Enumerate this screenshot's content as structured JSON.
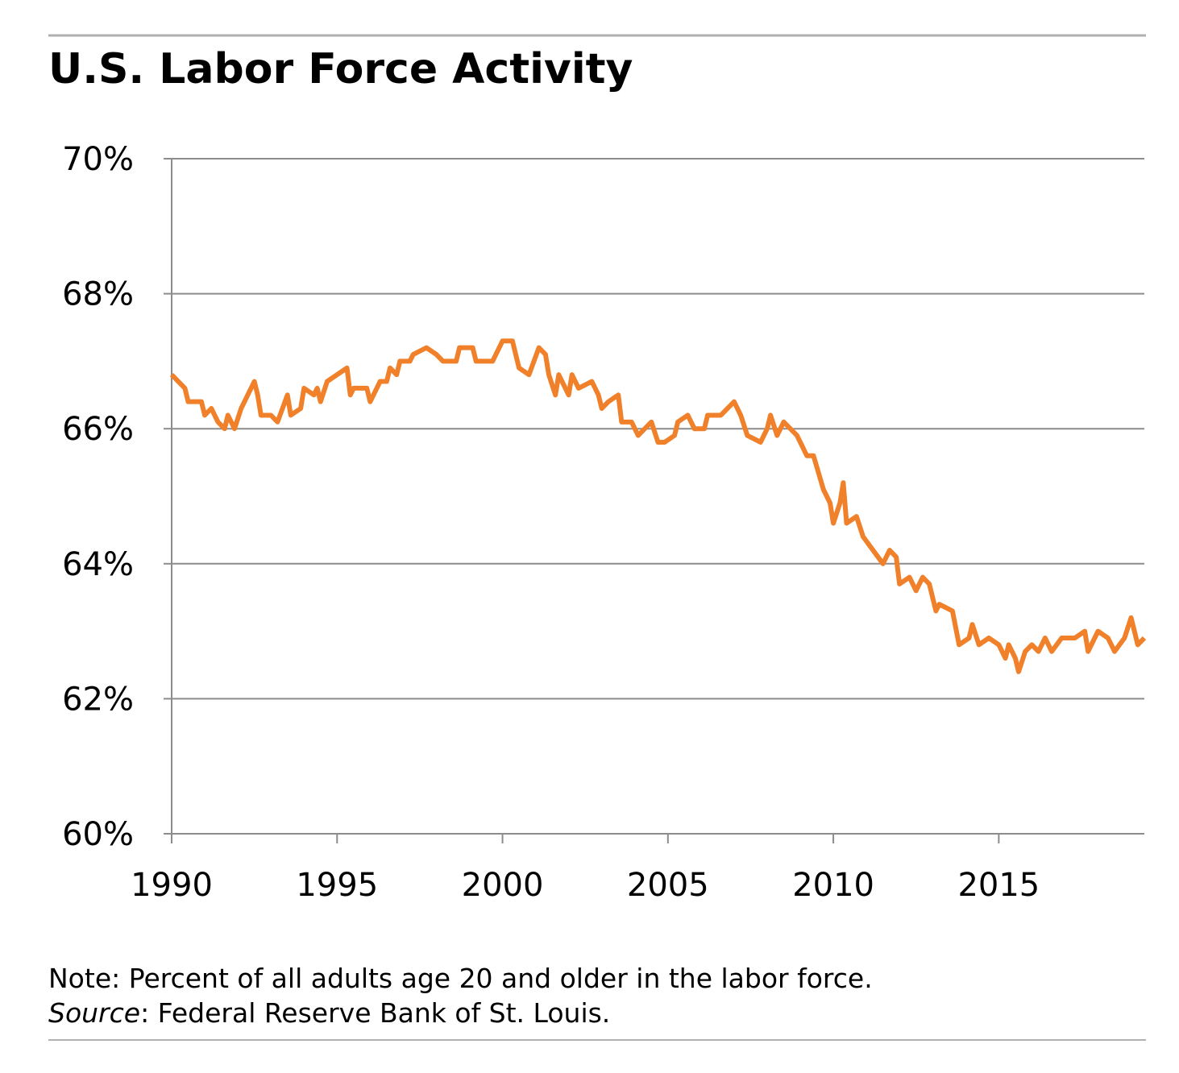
{
  "chart_data": {
    "type": "line",
    "title": "U.S. Labor Force Activity",
    "note": "Note: Percent of all adults age 20 and older in the labor force.",
    "source_label": "Source",
    "source": ": Federal Reserve Bank of St. Louis.",
    "xlim": [
      1990,
      2019.4
    ],
    "xticks": [
      1990,
      1995,
      2000,
      2005,
      2010,
      2015
    ],
    "ylim": [
      60,
      70
    ],
    "yticks": [
      {
        "value": 60,
        "label": "60%"
      },
      {
        "value": 62,
        "label": "62%"
      },
      {
        "value": 64,
        "label": "64%"
      },
      {
        "value": 66,
        "label": "66%"
      },
      {
        "value": 68,
        "label": "68%"
      },
      {
        "value": 70,
        "label": "70%"
      }
    ],
    "grid": true,
    "series": [
      {
        "color": "#f0802a",
        "x": [
          1990.0,
          1990.4,
          1990.5,
          1990.9,
          1991.0,
          1991.2,
          1991.4,
          1991.6,
          1991.7,
          1991.9,
          1992.1,
          1992.5,
          1992.6,
          1992.7,
          1993.0,
          1993.2,
          1993.5,
          1993.6,
          1993.9,
          1994.0,
          1994.3,
          1994.4,
          1994.5,
          1994.7,
          1995.0,
          1995.3,
          1995.4,
          1995.5,
          1995.9,
          1996.0,
          1996.3,
          1996.5,
          1996.6,
          1996.8,
          1996.9,
          1997.1,
          1997.2,
          1997.3,
          1997.7,
          1998.0,
          1998.2,
          1998.6,
          1998.7,
          1999.1,
          1999.2,
          1999.7,
          2000.0,
          2000.3,
          2000.5,
          2000.8,
          2001.1,
          2001.3,
          2001.4,
          2001.6,
          2001.7,
          2001.9,
          2002.0,
          2002.1,
          2002.3,
          2002.7,
          2002.9,
          2003.0,
          2003.2,
          2003.5,
          2003.6,
          2003.9,
          2004.1,
          2004.3,
          2004.5,
          2004.7,
          2004.9,
          2005.2,
          2005.3,
          2005.6,
          2005.8,
          2006.1,
          2006.2,
          2006.6,
          2007.0,
          2007.2,
          2007.4,
          2007.8,
          2008.0,
          2008.1,
          2008.3,
          2008.5,
          2008.9,
          2009.2,
          2009.4,
          2009.7,
          2009.9,
          2010.0,
          2010.2,
          2010.3,
          2010.4,
          2010.7,
          2010.9,
          2011.2,
          2011.5,
          2011.7,
          2011.9,
          2012.0,
          2012.3,
          2012.5,
          2012.7,
          2012.9,
          2013.1,
          2013.2,
          2013.6,
          2013.8,
          2014.1,
          2014.2,
          2014.4,
          2014.7,
          2015.0,
          2015.2,
          2015.3,
          2015.5,
          2015.6,
          2015.8,
          2016.0,
          2016.2,
          2016.4,
          2016.6,
          2016.9,
          2017.3,
          2017.6,
          2017.7,
          2018.0,
          2018.3,
          2018.5,
          2018.8,
          2019.0,
          2019.2,
          2019.4
        ],
        "values": [
          66.8,
          66.6,
          66.4,
          66.4,
          66.2,
          66.3,
          66.1,
          66.0,
          66.2,
          66.0,
          66.3,
          66.7,
          66.5,
          66.2,
          66.2,
          66.1,
          66.5,
          66.2,
          66.3,
          66.6,
          66.5,
          66.6,
          66.4,
          66.7,
          66.8,
          66.9,
          66.5,
          66.6,
          66.6,
          66.4,
          66.7,
          66.7,
          66.9,
          66.8,
          67.0,
          67.0,
          67.0,
          67.1,
          67.2,
          67.1,
          67.0,
          67.0,
          67.2,
          67.2,
          67.0,
          67.0,
          67.3,
          67.3,
          66.9,
          66.8,
          67.2,
          67.1,
          66.8,
          66.5,
          66.8,
          66.6,
          66.5,
          66.8,
          66.6,
          66.7,
          66.5,
          66.3,
          66.4,
          66.5,
          66.1,
          66.1,
          65.9,
          66.0,
          66.1,
          65.8,
          65.8,
          65.9,
          66.1,
          66.2,
          66.0,
          66.0,
          66.2,
          66.2,
          66.4,
          66.2,
          65.9,
          65.8,
          66.0,
          66.2,
          65.9,
          66.1,
          65.9,
          65.6,
          65.6,
          65.1,
          64.9,
          64.6,
          64.9,
          65.2,
          64.6,
          64.7,
          64.4,
          64.2,
          64.0,
          64.2,
          64.1,
          63.7,
          63.8,
          63.6,
          63.8,
          63.7,
          63.3,
          63.4,
          63.3,
          62.8,
          62.9,
          63.1,
          62.8,
          62.9,
          62.8,
          62.6,
          62.8,
          62.6,
          62.4,
          62.7,
          62.8,
          62.7,
          62.9,
          62.7,
          62.9,
          62.9,
          63.0,
          62.7,
          63.0,
          62.9,
          62.7,
          62.9,
          63.2,
          62.8,
          62.9
        ]
      }
    ]
  }
}
